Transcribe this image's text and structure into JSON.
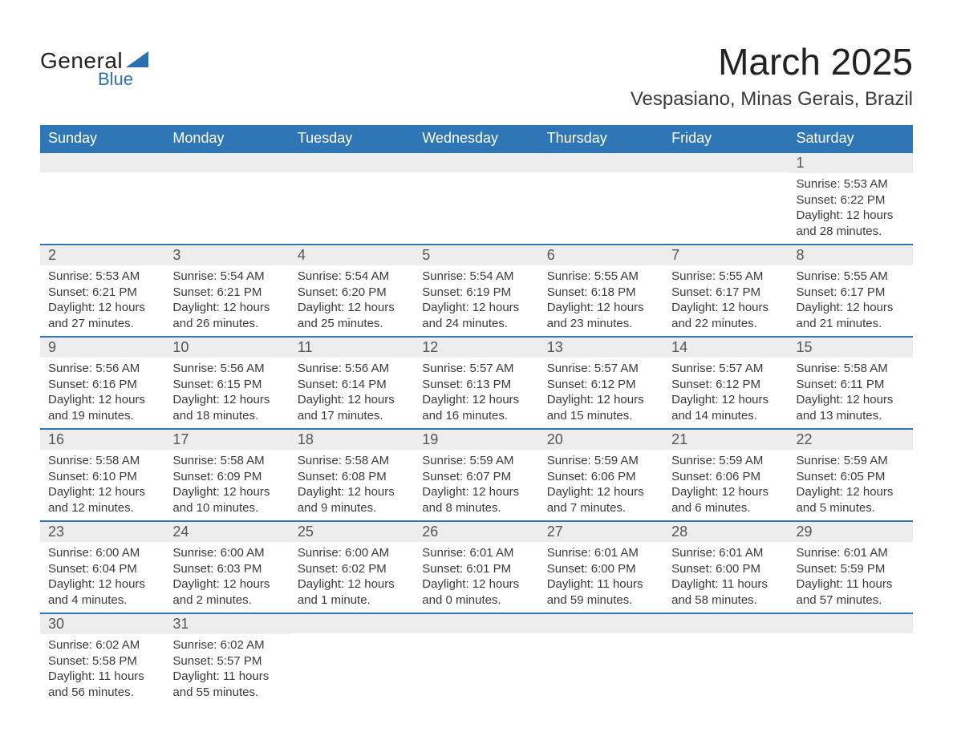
{
  "logo": {
    "word1": "General",
    "word2": "Blue",
    "text_color": "#222222",
    "accent_color": "#2c6fb0"
  },
  "title": {
    "month": "March 2025",
    "location": "Vespasiano, Minas Gerais, Brazil"
  },
  "calendar": {
    "header_bg": "#2f76b6",
    "header_fg": "#ffffff",
    "row_border": "#2f76b6",
    "daynum_bg": "#ededed",
    "dow": [
      "Sunday",
      "Monday",
      "Tuesday",
      "Wednesday",
      "Thursday",
      "Friday",
      "Saturday"
    ],
    "weeks": [
      [
        {
          "n": "",
          "sunrise": "",
          "sunset": "",
          "daylight": ""
        },
        {
          "n": "",
          "sunrise": "",
          "sunset": "",
          "daylight": ""
        },
        {
          "n": "",
          "sunrise": "",
          "sunset": "",
          "daylight": ""
        },
        {
          "n": "",
          "sunrise": "",
          "sunset": "",
          "daylight": ""
        },
        {
          "n": "",
          "sunrise": "",
          "sunset": "",
          "daylight": ""
        },
        {
          "n": "",
          "sunrise": "",
          "sunset": "",
          "daylight": ""
        },
        {
          "n": "1",
          "sunrise": "Sunrise: 5:53 AM",
          "sunset": "Sunset: 6:22 PM",
          "daylight": "Daylight: 12 hours and 28 minutes."
        }
      ],
      [
        {
          "n": "2",
          "sunrise": "Sunrise: 5:53 AM",
          "sunset": "Sunset: 6:21 PM",
          "daylight": "Daylight: 12 hours and 27 minutes."
        },
        {
          "n": "3",
          "sunrise": "Sunrise: 5:54 AM",
          "sunset": "Sunset: 6:21 PM",
          "daylight": "Daylight: 12 hours and 26 minutes."
        },
        {
          "n": "4",
          "sunrise": "Sunrise: 5:54 AM",
          "sunset": "Sunset: 6:20 PM",
          "daylight": "Daylight: 12 hours and 25 minutes."
        },
        {
          "n": "5",
          "sunrise": "Sunrise: 5:54 AM",
          "sunset": "Sunset: 6:19 PM",
          "daylight": "Daylight: 12 hours and 24 minutes."
        },
        {
          "n": "6",
          "sunrise": "Sunrise: 5:55 AM",
          "sunset": "Sunset: 6:18 PM",
          "daylight": "Daylight: 12 hours and 23 minutes."
        },
        {
          "n": "7",
          "sunrise": "Sunrise: 5:55 AM",
          "sunset": "Sunset: 6:17 PM",
          "daylight": "Daylight: 12 hours and 22 minutes."
        },
        {
          "n": "8",
          "sunrise": "Sunrise: 5:55 AM",
          "sunset": "Sunset: 6:17 PM",
          "daylight": "Daylight: 12 hours and 21 minutes."
        }
      ],
      [
        {
          "n": "9",
          "sunrise": "Sunrise: 5:56 AM",
          "sunset": "Sunset: 6:16 PM",
          "daylight": "Daylight: 12 hours and 19 minutes."
        },
        {
          "n": "10",
          "sunrise": "Sunrise: 5:56 AM",
          "sunset": "Sunset: 6:15 PM",
          "daylight": "Daylight: 12 hours and 18 minutes."
        },
        {
          "n": "11",
          "sunrise": "Sunrise: 5:56 AM",
          "sunset": "Sunset: 6:14 PM",
          "daylight": "Daylight: 12 hours and 17 minutes."
        },
        {
          "n": "12",
          "sunrise": "Sunrise: 5:57 AM",
          "sunset": "Sunset: 6:13 PM",
          "daylight": "Daylight: 12 hours and 16 minutes."
        },
        {
          "n": "13",
          "sunrise": "Sunrise: 5:57 AM",
          "sunset": "Sunset: 6:12 PM",
          "daylight": "Daylight: 12 hours and 15 minutes."
        },
        {
          "n": "14",
          "sunrise": "Sunrise: 5:57 AM",
          "sunset": "Sunset: 6:12 PM",
          "daylight": "Daylight: 12 hours and 14 minutes."
        },
        {
          "n": "15",
          "sunrise": "Sunrise: 5:58 AM",
          "sunset": "Sunset: 6:11 PM",
          "daylight": "Daylight: 12 hours and 13 minutes."
        }
      ],
      [
        {
          "n": "16",
          "sunrise": "Sunrise: 5:58 AM",
          "sunset": "Sunset: 6:10 PM",
          "daylight": "Daylight: 12 hours and 12 minutes."
        },
        {
          "n": "17",
          "sunrise": "Sunrise: 5:58 AM",
          "sunset": "Sunset: 6:09 PM",
          "daylight": "Daylight: 12 hours and 10 minutes."
        },
        {
          "n": "18",
          "sunrise": "Sunrise: 5:58 AM",
          "sunset": "Sunset: 6:08 PM",
          "daylight": "Daylight: 12 hours and 9 minutes."
        },
        {
          "n": "19",
          "sunrise": "Sunrise: 5:59 AM",
          "sunset": "Sunset: 6:07 PM",
          "daylight": "Daylight: 12 hours and 8 minutes."
        },
        {
          "n": "20",
          "sunrise": "Sunrise: 5:59 AM",
          "sunset": "Sunset: 6:06 PM",
          "daylight": "Daylight: 12 hours and 7 minutes."
        },
        {
          "n": "21",
          "sunrise": "Sunrise: 5:59 AM",
          "sunset": "Sunset: 6:06 PM",
          "daylight": "Daylight: 12 hours and 6 minutes."
        },
        {
          "n": "22",
          "sunrise": "Sunrise: 5:59 AM",
          "sunset": "Sunset: 6:05 PM",
          "daylight": "Daylight: 12 hours and 5 minutes."
        }
      ],
      [
        {
          "n": "23",
          "sunrise": "Sunrise: 6:00 AM",
          "sunset": "Sunset: 6:04 PM",
          "daylight": "Daylight: 12 hours and 4 minutes."
        },
        {
          "n": "24",
          "sunrise": "Sunrise: 6:00 AM",
          "sunset": "Sunset: 6:03 PM",
          "daylight": "Daylight: 12 hours and 2 minutes."
        },
        {
          "n": "25",
          "sunrise": "Sunrise: 6:00 AM",
          "sunset": "Sunset: 6:02 PM",
          "daylight": "Daylight: 12 hours and 1 minute."
        },
        {
          "n": "26",
          "sunrise": "Sunrise: 6:01 AM",
          "sunset": "Sunset: 6:01 PM",
          "daylight": "Daylight: 12 hours and 0 minutes."
        },
        {
          "n": "27",
          "sunrise": "Sunrise: 6:01 AM",
          "sunset": "Sunset: 6:00 PM",
          "daylight": "Daylight: 11 hours and 59 minutes."
        },
        {
          "n": "28",
          "sunrise": "Sunrise: 6:01 AM",
          "sunset": "Sunset: 6:00 PM",
          "daylight": "Daylight: 11 hours and 58 minutes."
        },
        {
          "n": "29",
          "sunrise": "Sunrise: 6:01 AM",
          "sunset": "Sunset: 5:59 PM",
          "daylight": "Daylight: 11 hours and 57 minutes."
        }
      ],
      [
        {
          "n": "30",
          "sunrise": "Sunrise: 6:02 AM",
          "sunset": "Sunset: 5:58 PM",
          "daylight": "Daylight: 11 hours and 56 minutes."
        },
        {
          "n": "31",
          "sunrise": "Sunrise: 6:02 AM",
          "sunset": "Sunset: 5:57 PM",
          "daylight": "Daylight: 11 hours and 55 minutes."
        },
        {
          "n": "",
          "sunrise": "",
          "sunset": "",
          "daylight": ""
        },
        {
          "n": "",
          "sunrise": "",
          "sunset": "",
          "daylight": ""
        },
        {
          "n": "",
          "sunrise": "",
          "sunset": "",
          "daylight": ""
        },
        {
          "n": "",
          "sunrise": "",
          "sunset": "",
          "daylight": ""
        },
        {
          "n": "",
          "sunrise": "",
          "sunset": "",
          "daylight": ""
        }
      ]
    ]
  }
}
